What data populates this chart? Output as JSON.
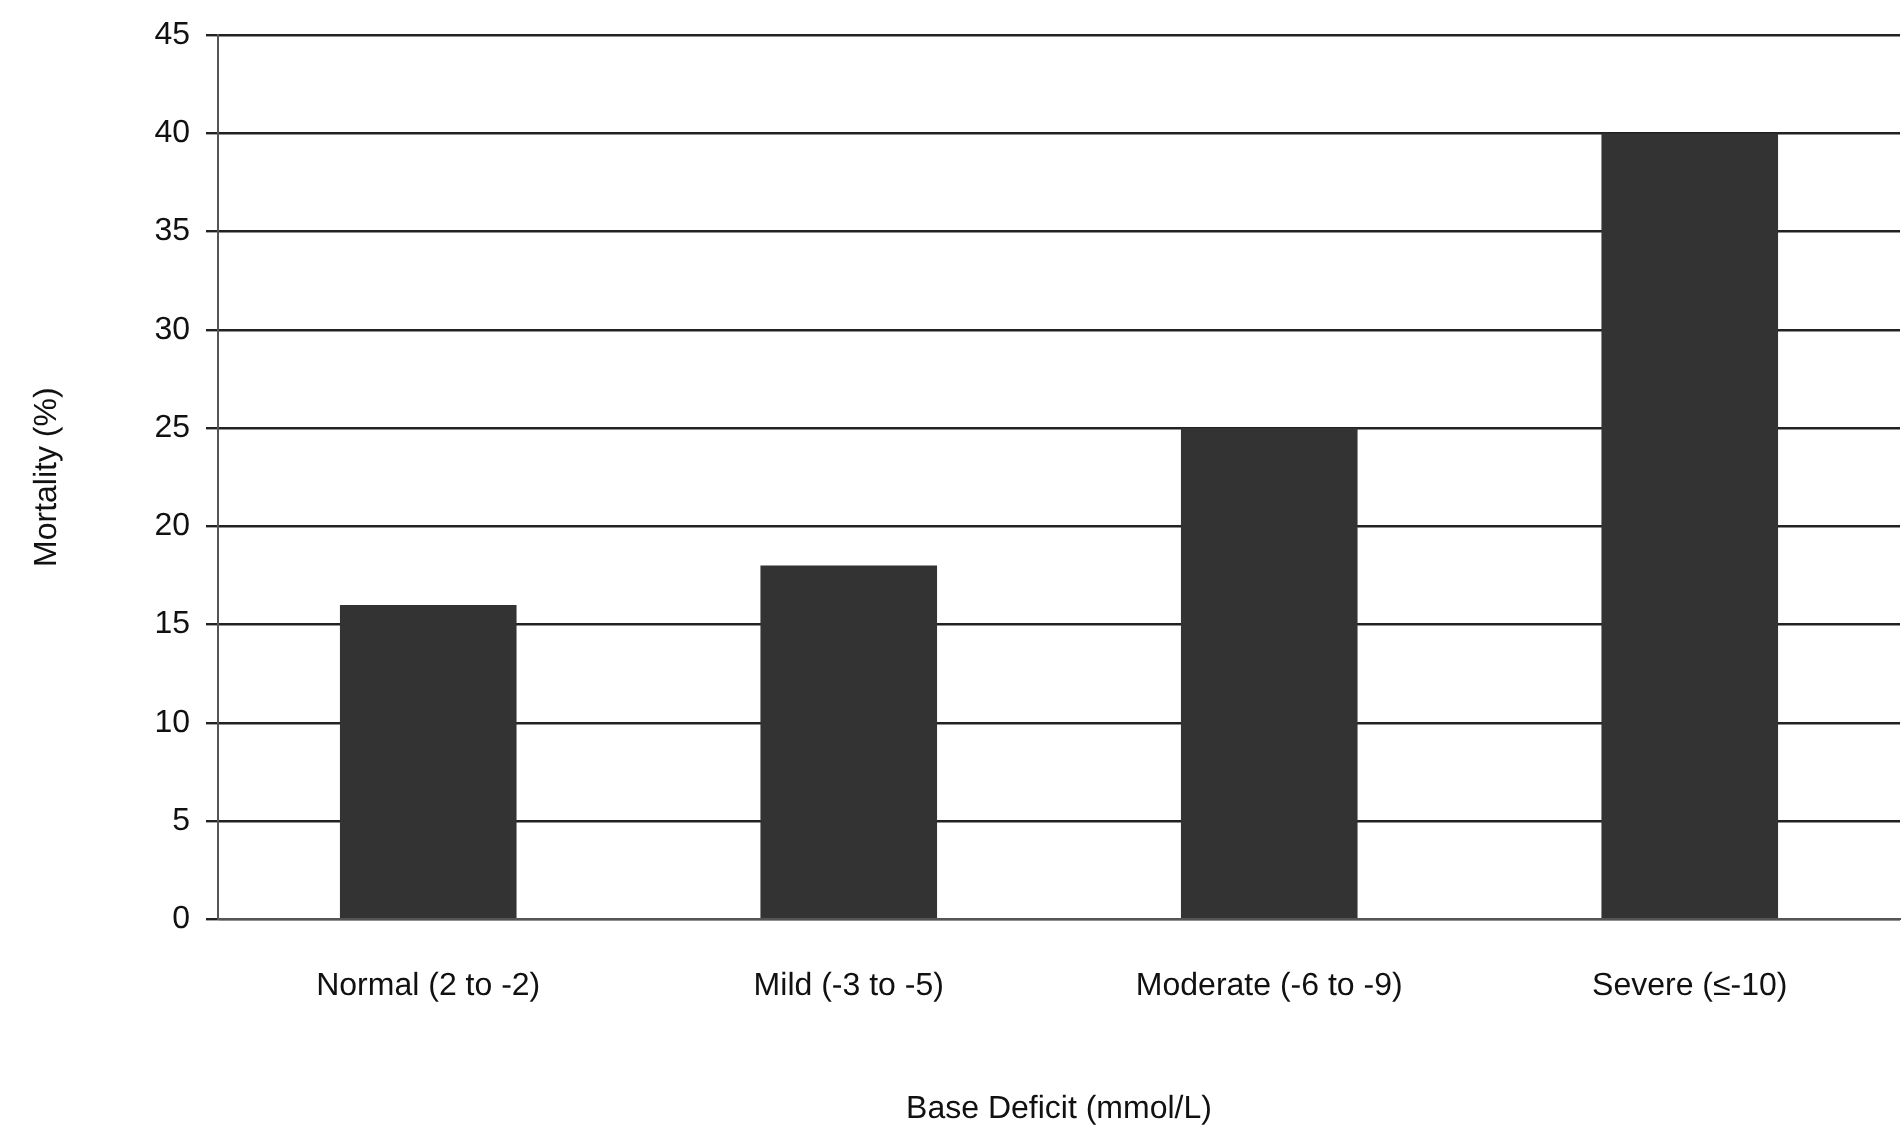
{
  "chart_data": {
    "type": "bar",
    "xlabel": "Base Deficit (mmol/L)",
    "ylabel": "Mortality (%)",
    "categories": [
      "Normal (2 to -2)",
      "Mild (-3 to -5)",
      "Moderate (-6 to -9)",
      "Severe (≤-10)"
    ],
    "values": [
      16,
      18,
      25,
      40
    ],
    "color": "#333333",
    "ylim": [
      0,
      45
    ],
    "yticks": [
      0,
      5,
      10,
      15,
      20,
      25,
      30,
      35,
      40,
      45
    ],
    "grid": "y",
    "legend": false
  }
}
